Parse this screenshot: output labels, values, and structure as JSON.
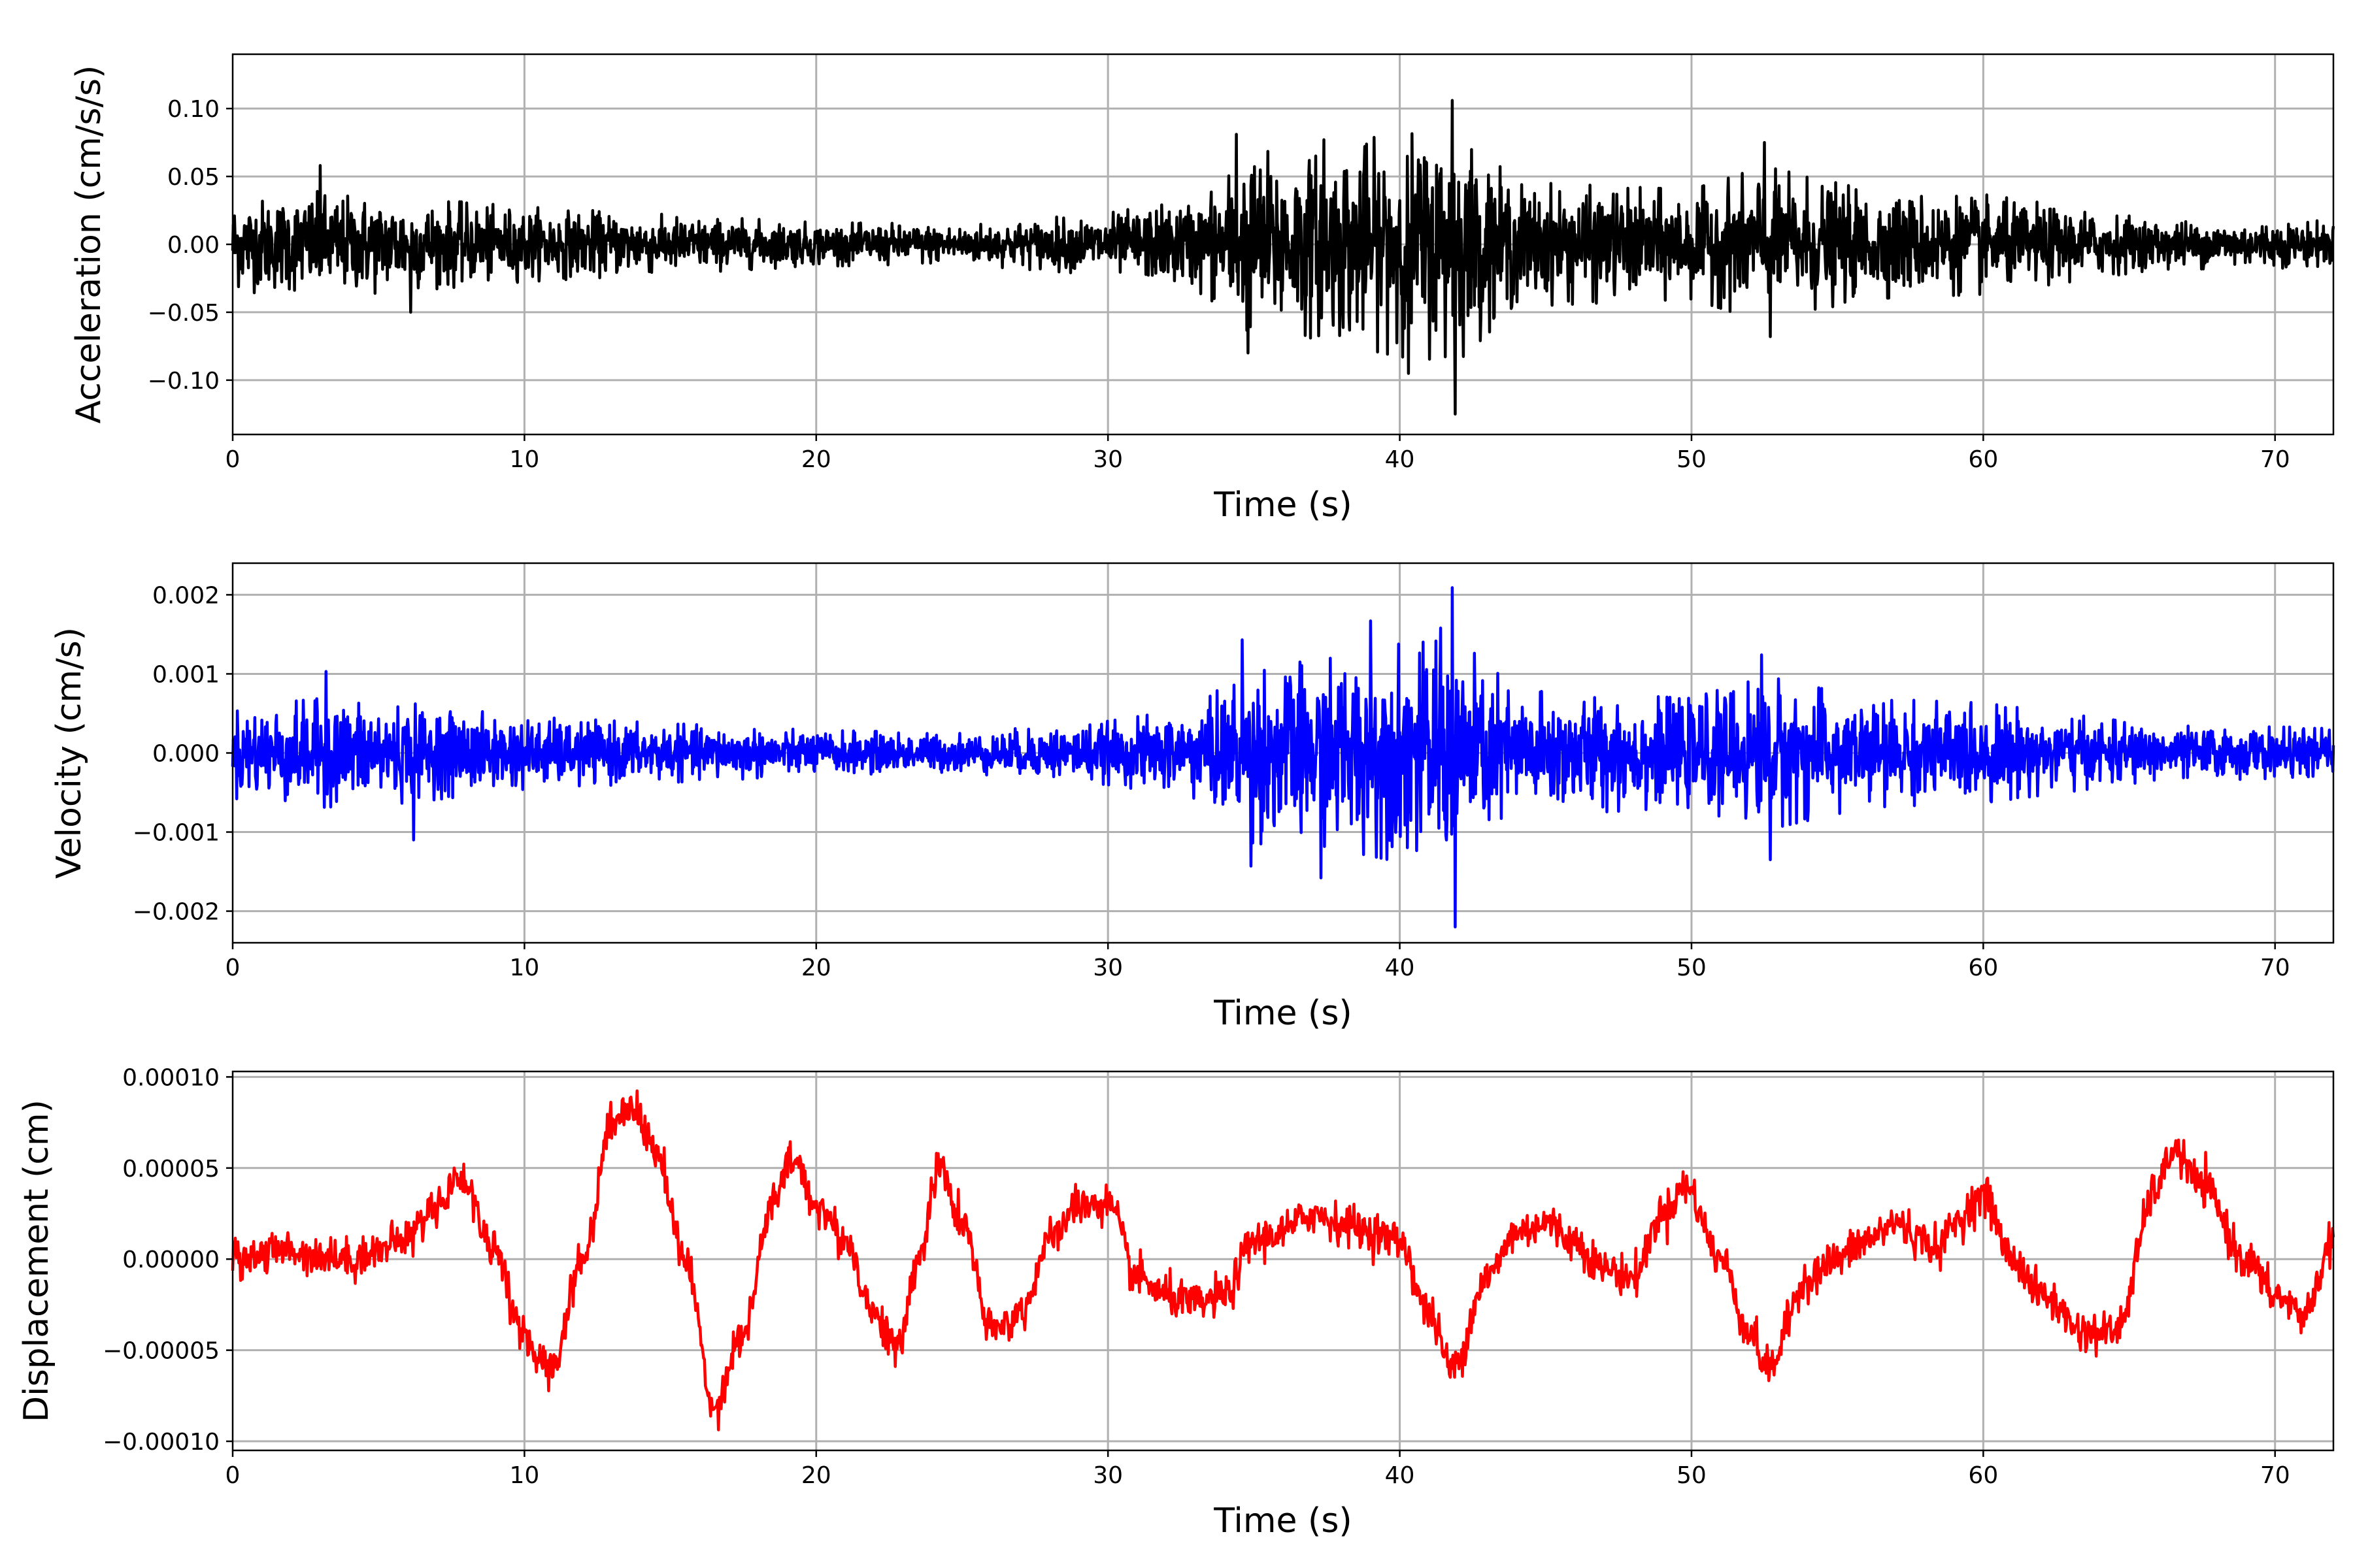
{
  "chart_data": [
    {
      "type": "line",
      "ylabel": "Acceleration (cm/s/s)",
      "xlabel": "Time (s)",
      "xlim": [
        0,
        72
      ],
      "ylim": [
        -0.14,
        0.14
      ],
      "xticks": [
        "0",
        "10",
        "20",
        "30",
        "40",
        "50",
        "60",
        "70"
      ],
      "yticks": [
        "−0.10",
        "−0.05",
        "0.00",
        "0.05",
        "0.10"
      ],
      "ytick_values": [
        -0.1,
        -0.05,
        0.0,
        0.05,
        0.1
      ],
      "grid": true,
      "color": "#000000",
      "noise_amplitude": 0.06,
      "peaks": [
        {
          "x": 3.0,
          "y": 0.058
        },
        {
          "x": 6.1,
          "y": -0.05
        },
        {
          "x": 34.4,
          "y": 0.081
        },
        {
          "x": 34.8,
          "y": -0.08
        },
        {
          "x": 37.4,
          "y": 0.077
        },
        {
          "x": 40.3,
          "y": -0.095
        },
        {
          "x": 41.8,
          "y": 0.106
        },
        {
          "x": 41.9,
          "y": -0.125
        },
        {
          "x": 52.5,
          "y": 0.075
        },
        {
          "x": 52.7,
          "y": -0.068
        }
      ],
      "envelope": [
        {
          "t": 0,
          "a": 0.03
        },
        {
          "t": 3,
          "a": 0.034
        },
        {
          "t": 6,
          "a": 0.03
        },
        {
          "t": 10,
          "a": 0.024
        },
        {
          "t": 20,
          "a": 0.014
        },
        {
          "t": 25,
          "a": 0.013
        },
        {
          "t": 30,
          "a": 0.02
        },
        {
          "t": 33,
          "a": 0.03
        },
        {
          "t": 35,
          "a": 0.06
        },
        {
          "t": 37,
          "a": 0.06
        },
        {
          "t": 40,
          "a": 0.072
        },
        {
          "t": 42,
          "a": 0.075
        },
        {
          "t": 44,
          "a": 0.04
        },
        {
          "t": 50,
          "a": 0.035
        },
        {
          "t": 52.5,
          "a": 0.05
        },
        {
          "t": 56,
          "a": 0.035
        },
        {
          "t": 60,
          "a": 0.032
        },
        {
          "t": 66,
          "a": 0.016
        },
        {
          "t": 72,
          "a": 0.015
        }
      ]
    },
    {
      "type": "line",
      "ylabel": "Velocity (cm/s)",
      "xlabel": "Time (s)",
      "xlim": [
        0,
        72
      ],
      "ylim": [
        -0.0024,
        0.0024
      ],
      "xticks": [
        "0",
        "10",
        "20",
        "30",
        "40",
        "50",
        "60",
        "70"
      ],
      "yticks": [
        "−0.002",
        "−0.001",
        "0.000",
        "0.001",
        "0.002"
      ],
      "ytick_values": [
        -0.002,
        -0.001,
        0.0,
        0.001,
        0.002
      ],
      "grid": true,
      "color": "#0000ff",
      "noise_amplitude": 0.0012,
      "peaks": [
        {
          "x": 3.2,
          "y": 0.00103
        },
        {
          "x": 6.2,
          "y": -0.0011
        },
        {
          "x": 34.6,
          "y": 0.00143
        },
        {
          "x": 34.9,
          "y": -0.00143
        },
        {
          "x": 37.3,
          "y": -0.00158
        },
        {
          "x": 39.0,
          "y": 0.00167
        },
        {
          "x": 41.4,
          "y": 0.00158
        },
        {
          "x": 41.8,
          "y": 0.00209
        },
        {
          "x": 41.9,
          "y": -0.0022
        },
        {
          "x": 52.4,
          "y": 0.00124
        },
        {
          "x": 52.7,
          "y": -0.00135
        }
      ],
      "envelope": [
        {
          "t": 0,
          "a": 0.0005
        },
        {
          "t": 3,
          "a": 0.0006
        },
        {
          "t": 6,
          "a": 0.00055
        },
        {
          "t": 10,
          "a": 0.0004
        },
        {
          "t": 20,
          "a": 0.00025
        },
        {
          "t": 25,
          "a": 0.00022
        },
        {
          "t": 30,
          "a": 0.00035
        },
        {
          "t": 33,
          "a": 0.0005
        },
        {
          "t": 35,
          "a": 0.001
        },
        {
          "t": 37,
          "a": 0.001
        },
        {
          "t": 40,
          "a": 0.0012
        },
        {
          "t": 42,
          "a": 0.00125
        },
        {
          "t": 44,
          "a": 0.0007
        },
        {
          "t": 50,
          "a": 0.0006
        },
        {
          "t": 52.5,
          "a": 0.00085
        },
        {
          "t": 56,
          "a": 0.0006
        },
        {
          "t": 60,
          "a": 0.00055
        },
        {
          "t": 66,
          "a": 0.0003
        },
        {
          "t": 72,
          "a": 0.00028
        }
      ]
    },
    {
      "type": "line",
      "ylabel": "Displacement (cm)",
      "xlabel": "Time (s)",
      "xlim": [
        0,
        72
      ],
      "ylim": [
        -0.000105,
        0.000103
      ],
      "xticks": [
        "0",
        "10",
        "20",
        "30",
        "40",
        "50",
        "60",
        "70"
      ],
      "yticks": [
        "−0.00010",
        "−0.00005",
        "0.00000",
        "0.00005",
        "0.00010"
      ],
      "ytick_values": [
        -0.0001,
        -5e-05,
        0.0,
        5e-05,
        0.0001
      ],
      "grid": true,
      "color": "#ff0000",
      "noise_amplitude": 1.2e-05,
      "x": [
        0,
        1,
        2,
        3,
        4,
        5,
        6,
        7,
        7.8,
        9,
        10,
        10.9,
        12,
        13,
        13.6,
        14.5,
        15.5,
        16.5,
        17.5,
        18.5,
        19.2,
        20,
        21,
        22,
        22.8,
        23.5,
        24.2,
        25,
        26,
        27,
        28,
        29,
        30,
        31,
        32,
        33,
        34,
        35,
        36,
        37,
        38,
        39,
        40,
        41,
        41.8,
        43,
        44,
        45,
        46,
        47,
        48,
        49,
        49.8,
        51,
        52,
        52.6,
        54,
        55,
        56,
        57,
        58,
        58.5,
        59,
        60,
        61,
        62,
        63.5,
        64.5,
        66,
        66.5,
        67.5,
        69,
        70,
        71,
        72
      ],
      "y": [
        0.0,
        3e-06,
        5e-06,
        2e-06,
        0.0,
        5e-06,
        1.2e-05,
        3e-05,
        4.5e-05,
        5e-06,
        -4.5e-05,
        -6e-05,
        0.0,
        7.5e-05,
        8.5e-05,
        6e-05,
        0.0,
        -8e-05,
        -4e-05,
        3e-05,
        5.5e-05,
        3e-05,
        1e-05,
        -3e-05,
        -5e-05,
        0.0,
        5e-05,
        2e-05,
        -4e-05,
        -3e-05,
        1e-05,
        3e-05,
        3e-05,
        -1e-05,
        -2e-05,
        -2.5e-05,
        -2e-05,
        1e-05,
        1.5e-05,
        2.5e-05,
        2e-05,
        1.5e-05,
        1e-05,
        -3e-05,
        -6e-05,
        -1e-05,
        1.5e-05,
        2e-05,
        1e-05,
        -5e-06,
        -1e-05,
        2.5e-05,
        4e-05,
        0.0,
        -4e-05,
        -6e-05,
        -1e-05,
        0.0,
        1e-05,
        2e-05,
        1e-05,
        5e-06,
        2e-05,
        3.5e-05,
        0.0,
        -2e-05,
        -4e-05,
        -4e-05,
        4e-05,
        6e-05,
        4e-05,
        0.0,
        -2e-05,
        -3e-05,
        1e-05
      ]
    }
  ]
}
